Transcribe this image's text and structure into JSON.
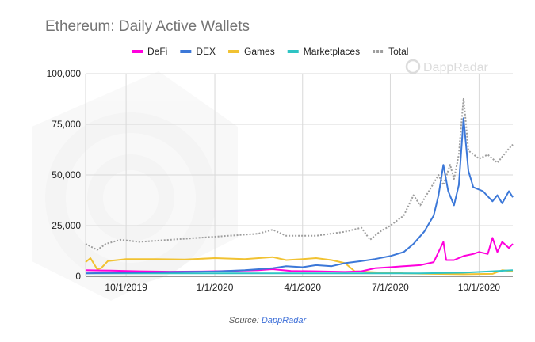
{
  "chart_data": {
    "type": "line",
    "title": "Ethereum: Daily Active Wallets",
    "ylim": [
      0,
      100000
    ],
    "y_ticks": [
      "0",
      "25,000",
      "50,000",
      "75,000",
      "100,000"
    ],
    "y_tick_values": [
      0,
      25000,
      50000,
      75000,
      100000
    ],
    "x_range": [
      "2019-08-20",
      "2020-11-05"
    ],
    "x_ticks": [
      {
        "date": "2019-10-01",
        "label": "10/1/2019"
      },
      {
        "date": "2020-01-01",
        "label": "1/1/2020"
      },
      {
        "date": "2020-04-01",
        "label": "4/1/2020"
      },
      {
        "date": "2020-07-01",
        "label": "7/1/2020"
      },
      {
        "date": "2020-10-01",
        "label": "10/1/2020"
      }
    ],
    "grid": true,
    "legend_position": "top",
    "series": [
      {
        "name": "DeFi",
        "color": "#ff00dd",
        "style": "solid",
        "points": [
          [
            "2019-08-20",
            3000
          ],
          [
            "2019-09-15",
            2800
          ],
          [
            "2019-10-15",
            2500
          ],
          [
            "2019-11-15",
            2300
          ],
          [
            "2019-12-15",
            2400
          ],
          [
            "2020-01-15",
            2600
          ],
          [
            "2020-02-15",
            3000
          ],
          [
            "2020-03-01",
            3500
          ],
          [
            "2020-03-20",
            2600
          ],
          [
            "2020-04-15",
            2500
          ],
          [
            "2020-05-15",
            2200
          ],
          [
            "2020-06-01",
            2500
          ],
          [
            "2020-06-15",
            4000
          ],
          [
            "2020-07-01",
            4500
          ],
          [
            "2020-07-15",
            5000
          ],
          [
            "2020-08-01",
            5500
          ],
          [
            "2020-08-15",
            7000
          ],
          [
            "2020-08-25",
            17000
          ],
          [
            "2020-08-28",
            8000
          ],
          [
            "2020-09-05",
            8000
          ],
          [
            "2020-09-15",
            10000
          ],
          [
            "2020-09-25",
            11000
          ],
          [
            "2020-10-01",
            12000
          ],
          [
            "2020-10-10",
            11000
          ],
          [
            "2020-10-15",
            19000
          ],
          [
            "2020-10-20",
            12000
          ],
          [
            "2020-10-25",
            17000
          ],
          [
            "2020-11-01",
            14000
          ],
          [
            "2020-11-05",
            16000
          ]
        ]
      },
      {
        "name": "DEX",
        "color": "#3c78d8",
        "style": "solid",
        "points": [
          [
            "2019-08-20",
            1500
          ],
          [
            "2019-10-01",
            1800
          ],
          [
            "2019-11-01",
            2000
          ],
          [
            "2019-12-01",
            2200
          ],
          [
            "2020-01-01",
            2400
          ],
          [
            "2020-02-01",
            3000
          ],
          [
            "2020-03-01",
            4000
          ],
          [
            "2020-03-15",
            5000
          ],
          [
            "2020-04-01",
            4500
          ],
          [
            "2020-04-15",
            5500
          ],
          [
            "2020-05-01",
            5000
          ],
          [
            "2020-05-15",
            6500
          ],
          [
            "2020-06-01",
            7500
          ],
          [
            "2020-06-15",
            8500
          ],
          [
            "2020-07-01",
            10000
          ],
          [
            "2020-07-15",
            12000
          ],
          [
            "2020-07-25",
            16000
          ],
          [
            "2020-08-05",
            22000
          ],
          [
            "2020-08-15",
            30000
          ],
          [
            "2020-08-20",
            40000
          ],
          [
            "2020-08-25",
            55000
          ],
          [
            "2020-08-30",
            42000
          ],
          [
            "2020-09-05",
            35000
          ],
          [
            "2020-09-10",
            45000
          ],
          [
            "2020-09-15",
            78000
          ],
          [
            "2020-09-20",
            52000
          ],
          [
            "2020-09-25",
            44000
          ],
          [
            "2020-10-05",
            42000
          ],
          [
            "2020-10-15",
            37000
          ],
          [
            "2020-10-20",
            40000
          ],
          [
            "2020-10-25",
            36000
          ],
          [
            "2020-11-01",
            42000
          ],
          [
            "2020-11-05",
            39000
          ]
        ]
      },
      {
        "name": "Games",
        "color": "#f1c232",
        "style": "solid",
        "points": [
          [
            "2019-08-20",
            7000
          ],
          [
            "2019-08-25",
            9000
          ],
          [
            "2019-09-01",
            3500
          ],
          [
            "2019-09-05",
            4000
          ],
          [
            "2019-09-12",
            7500
          ],
          [
            "2019-10-01",
            8500
          ],
          [
            "2019-11-01",
            8500
          ],
          [
            "2019-12-01",
            8300
          ],
          [
            "2020-01-01",
            9000
          ],
          [
            "2020-02-01",
            8500
          ],
          [
            "2020-03-01",
            9500
          ],
          [
            "2020-03-15",
            8000
          ],
          [
            "2020-04-01",
            8500
          ],
          [
            "2020-04-15",
            9000
          ],
          [
            "2020-05-01",
            8000
          ],
          [
            "2020-05-15",
            6500
          ],
          [
            "2020-05-25",
            2500
          ],
          [
            "2020-06-15",
            2000
          ],
          [
            "2020-07-15",
            1500
          ],
          [
            "2020-08-15",
            1200
          ],
          [
            "2020-09-15",
            1000
          ],
          [
            "2020-10-15",
            1200
          ],
          [
            "2020-10-25",
            3000
          ],
          [
            "2020-11-05",
            2500
          ]
        ]
      },
      {
        "name": "Marketplaces",
        "color": "#2ec4c4",
        "style": "solid",
        "points": [
          [
            "2019-08-20",
            1500
          ],
          [
            "2019-10-01",
            1500
          ],
          [
            "2019-12-01",
            1500
          ],
          [
            "2020-02-01",
            1500
          ],
          [
            "2020-04-01",
            1500
          ],
          [
            "2020-06-01",
            1500
          ],
          [
            "2020-08-01",
            1500
          ],
          [
            "2020-09-15",
            1800
          ],
          [
            "2020-10-15",
            2500
          ],
          [
            "2020-11-05",
            3000
          ]
        ]
      },
      {
        "name": "Total",
        "color": "#9e9e9e",
        "style": "dotted",
        "points": [
          [
            "2019-08-20",
            16000
          ],
          [
            "2019-09-01",
            13000
          ],
          [
            "2019-09-10",
            16000
          ],
          [
            "2019-09-25",
            18000
          ],
          [
            "2019-10-15",
            17000
          ],
          [
            "2019-11-15",
            18000
          ],
          [
            "2019-12-15",
            19000
          ],
          [
            "2020-01-15",
            20000
          ],
          [
            "2020-02-15",
            21000
          ],
          [
            "2020-03-01",
            23000
          ],
          [
            "2020-03-15",
            20000
          ],
          [
            "2020-04-15",
            20000
          ],
          [
            "2020-05-15",
            22000
          ],
          [
            "2020-06-01",
            24000
          ],
          [
            "2020-06-10",
            18000
          ],
          [
            "2020-06-20",
            22000
          ],
          [
            "2020-07-01",
            25000
          ],
          [
            "2020-07-15",
            30000
          ],
          [
            "2020-07-25",
            40000
          ],
          [
            "2020-08-01",
            35000
          ],
          [
            "2020-08-10",
            42000
          ],
          [
            "2020-08-20",
            50000
          ],
          [
            "2020-08-25",
            45000
          ],
          [
            "2020-09-01",
            55000
          ],
          [
            "2020-09-05",
            48000
          ],
          [
            "2020-09-10",
            60000
          ],
          [
            "2020-09-15",
            88000
          ],
          [
            "2020-09-20",
            62000
          ],
          [
            "2020-10-01",
            58000
          ],
          [
            "2020-10-10",
            60000
          ],
          [
            "2020-10-20",
            56000
          ],
          [
            "2020-11-01",
            63000
          ],
          [
            "2020-11-05",
            65000
          ]
        ]
      }
    ]
  },
  "watermark": "DappRadar",
  "source": {
    "label": "Source:",
    "link": "DappRadar"
  }
}
